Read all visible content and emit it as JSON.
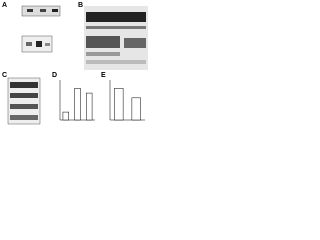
{
  "panels": [
    {
      "label": "A"
    },
    {
      "label": "B"
    },
    {
      "label": "C"
    },
    {
      "label": "D",
      "values": [
        0.25,
        1.0,
        0.85
      ],
      "ylim": [
        0,
        1.2
      ]
    },
    {
      "label": "E",
      "values": [
        1.0,
        0.7
      ],
      "ylim": [
        0,
        1.2
      ]
    }
  ]
}
